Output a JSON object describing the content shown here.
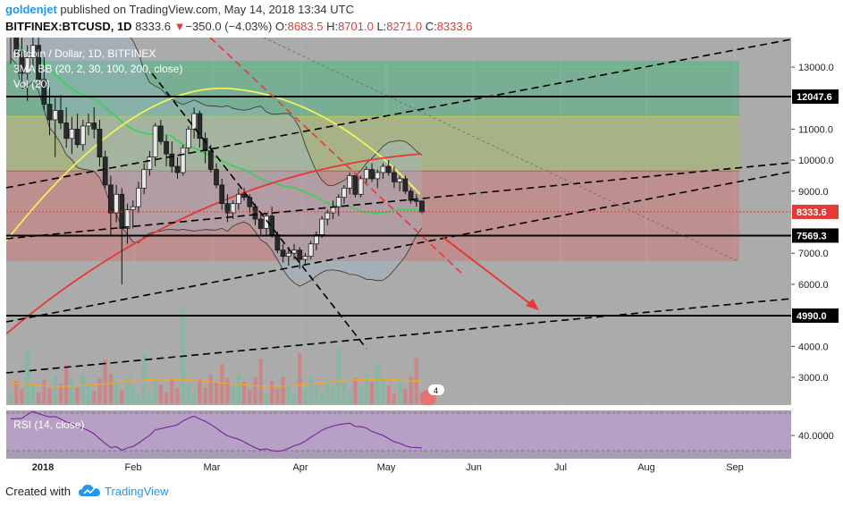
{
  "header": {
    "author": "goldenjet",
    "published": "published on TradingView.com, May 14, 2018 13:34 UTC",
    "symbol": "BITFINEX:BTCUSD, 1D",
    "last": "8333.6",
    "change": "−350.0 (−4.03%)",
    "o_label": "O:",
    "o": "8683.5",
    "h_label": "H:",
    "h": "8701.0",
    "l_label": "L:",
    "l": "8271.0",
    "c_label": "C:",
    "c": "8333.6"
  },
  "legend": {
    "title": "Bitcoin / Dollar, 1D, BITFINEX",
    "indicator1": "3MA BB (20, 2, 30, 100, 200, close)",
    "indicator2": "Vol (20)"
  },
  "rsi_label": "RSI (14, close)",
  "footer": {
    "created": "Created with",
    "brand": "TradingView"
  },
  "colors": {
    "bg": "#ababab",
    "green_zone": "#7fb79a",
    "red_zone": "#c48a8a",
    "rsi_band": "#b9a1c8",
    "ma_red": "#e53935",
    "ma_yellow": "#f2f25a",
    "ma_green": "#3fcf5a",
    "rsi_line": "#7b1fa2",
    "arrow": "#e53935"
  },
  "chart_data": {
    "type": "candlestick",
    "title": "Bitcoin / Dollar, 1D, BITFINEX",
    "x_tick_labels": [
      "2018",
      "Feb",
      "Mar",
      "Apr",
      "May",
      "Jun",
      "Jul",
      "Aug",
      "Sep"
    ],
    "y_tick_labels": [
      "13000.0",
      "11000.0",
      "10000.0",
      "9000.0",
      "7000.0",
      "6000.0",
      "4000.0",
      "3000.0"
    ],
    "price_labels": [
      {
        "value": 12047.6,
        "text": "12047.6",
        "color": "#000000"
      },
      {
        "value": 8333.6,
        "text": "8333.6",
        "color": "#e53935"
      },
      {
        "value": 7569.3,
        "text": "7569.3",
        "color": "#000000"
      },
      {
        "value": 4990.0,
        "text": "4990.0",
        "color": "#000000"
      }
    ],
    "horizontal_levels": [
      12047.6,
      7569.3,
      4990.0
    ],
    "rsi": {
      "label": "RSI (14, close)",
      "tick": "40.0000",
      "range": [
        30,
        70
      ]
    },
    "event_badge": "4",
    "ohlc_approx": [
      [
        14000,
        15400,
        13100,
        14300
      ],
      [
        14300,
        15600,
        13300,
        13500
      ],
      [
        13500,
        14600,
        12400,
        12800
      ],
      [
        12800,
        13700,
        11900,
        13300
      ],
      [
        13300,
        14000,
        12900,
        13700
      ],
      [
        13700,
        14200,
        12400,
        12600
      ],
      [
        12600,
        13400,
        11600,
        11800
      ],
      [
        11800,
        12500,
        10800,
        11300
      ],
      [
        11300,
        12000,
        10100,
        11600
      ],
      [
        11600,
        12100,
        11000,
        11200
      ],
      [
        11200,
        11700,
        10400,
        10700
      ],
      [
        10700,
        11400,
        10200,
        11000
      ],
      [
        11000,
        11500,
        10400,
        10500
      ],
      [
        10500,
        11300,
        10300,
        11100
      ],
      [
        11100,
        11500,
        10800,
        11200
      ],
      [
        11200,
        11700,
        10700,
        11000
      ],
      [
        11000,
        11300,
        9800,
        10100
      ],
      [
        10100,
        10300,
        9100,
        9200
      ],
      [
        9200,
        9500,
        7600,
        8300
      ],
      [
        8300,
        9200,
        8000,
        8900
      ],
      [
        8900,
        9100,
        6000,
        7800
      ],
      [
        7800,
        8600,
        7300,
        8400
      ],
      [
        8400,
        8700,
        7800,
        8500
      ],
      [
        8500,
        9300,
        8300,
        9100
      ],
      [
        9100,
        9900,
        8900,
        9700
      ],
      [
        9700,
        10300,
        9500,
        10100
      ],
      [
        10100,
        11200,
        9800,
        11100
      ],
      [
        11100,
        11300,
        10500,
        10600
      ],
      [
        10600,
        10800,
        9800,
        10200
      ],
      [
        10200,
        10600,
        9600,
        9800
      ],
      [
        9800,
        10100,
        9400,
        9600
      ],
      [
        9600,
        10500,
        9500,
        10400
      ],
      [
        10400,
        11100,
        10200,
        11000
      ],
      [
        11000,
        11700,
        10700,
        11500
      ],
      [
        11500,
        11600,
        10400,
        10700
      ],
      [
        10700,
        10900,
        9900,
        10300
      ],
      [
        10300,
        10500,
        9600,
        9700
      ],
      [
        9700,
        9900,
        9100,
        9200
      ],
      [
        9200,
        9400,
        8400,
        8600
      ],
      [
        8600,
        8900,
        8000,
        8300
      ],
      [
        8300,
        8700,
        8100,
        8600
      ],
      [
        8600,
        9100,
        8400,
        8900
      ],
      [
        8900,
        9100,
        8700,
        8800
      ],
      [
        8800,
        8900,
        8300,
        8500
      ],
      [
        8500,
        8600,
        7900,
        8100
      ],
      [
        8100,
        8300,
        7600,
        7800
      ],
      [
        7800,
        8300,
        7600,
        8200
      ],
      [
        8200,
        8500,
        7500,
        7600
      ],
      [
        7600,
        7700,
        7000,
        7100
      ],
      [
        7100,
        7300,
        6700,
        6900
      ],
      [
        6900,
        7200,
        6600,
        7000
      ],
      [
        7000,
        7300,
        6800,
        7100
      ],
      [
        7100,
        7200,
        6500,
        6800
      ],
      [
        6800,
        7000,
        6600,
        6900
      ],
      [
        6900,
        7400,
        6800,
        7300
      ],
      [
        7300,
        7700,
        7100,
        7600
      ],
      [
        7600,
        8200,
        7500,
        8100
      ],
      [
        8100,
        8400,
        7900,
        8300
      ],
      [
        8300,
        8700,
        8100,
        8500
      ],
      [
        8500,
        8900,
        8200,
        8800
      ],
      [
        8800,
        9200,
        8600,
        9100
      ],
      [
        9100,
        9600,
        8900,
        9500
      ],
      [
        9500,
        9400,
        8800,
        8900
      ],
      [
        8900,
        9500,
        8800,
        9400
      ],
      [
        9400,
        9800,
        9200,
        9700
      ],
      [
        9700,
        9900,
        9300,
        9400
      ],
      [
        9400,
        9700,
        9100,
        9600
      ],
      [
        9600,
        9900,
        9400,
        9800
      ],
      [
        9800,
        10000,
        9500,
        9600
      ],
      [
        9600,
        9800,
        9100,
        9300
      ],
      [
        9300,
        9500,
        9000,
        9400
      ],
      [
        9400,
        9500,
        8900,
        9000
      ],
      [
        9000,
        9100,
        8600,
        8700
      ],
      [
        8700,
        8900,
        8500,
        8680
      ],
      [
        8683,
        8701,
        8271,
        8333
      ]
    ]
  }
}
